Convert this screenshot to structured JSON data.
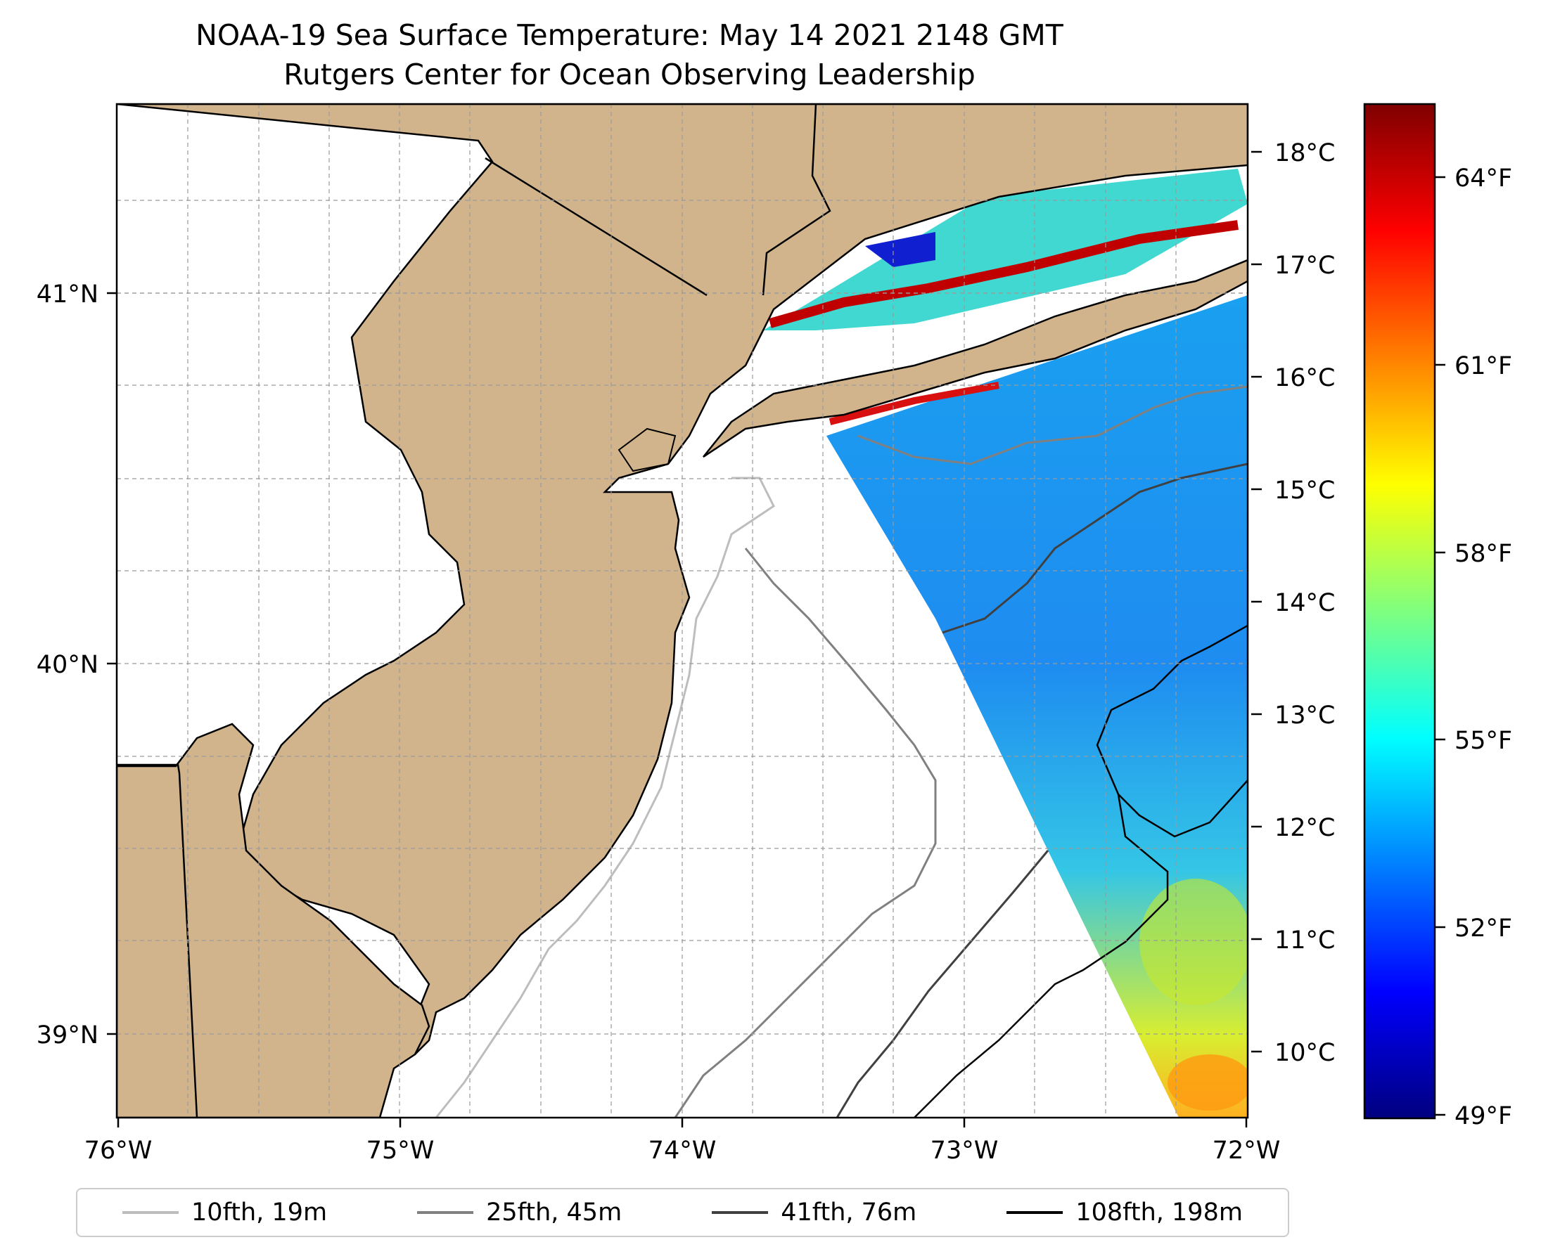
{
  "title": {
    "line1": "NOAA-19 Sea Surface Temperature: May 14 2021 2148 GMT",
    "line2": "Rutgers Center for Ocean Observing Leadership"
  },
  "map": {
    "lon_range": [
      -76,
      -72
    ],
    "lat_range": [
      38.75,
      41.5
    ],
    "x_ticks": [
      "76°W",
      "75°W",
      "74°W",
      "73°W",
      "72°W"
    ],
    "y_ticks": [
      "41°N",
      "40°N",
      "39°N"
    ],
    "grid": true,
    "colors": {
      "land": "#d2b48c",
      "ocean": "#ffffff",
      "coast": "#000000"
    }
  },
  "colorbar": {
    "colormap": "jet",
    "celsius_ticks": [
      "18°C",
      "17°C",
      "16°C",
      "15°C",
      "14°C",
      "13°C",
      "12°C",
      "11°C",
      "10°C"
    ],
    "fahrenheit_ticks": [
      "64°F",
      "61°F",
      "58°F",
      "55°F",
      "52°F",
      "49°F"
    ],
    "range_c": [
      9.5,
      18.5
    ]
  },
  "legend": {
    "items": [
      {
        "label": "10fth, 19m",
        "color": "#bdbdbd"
      },
      {
        "label": "25fth, 45m",
        "color": "#808080"
      },
      {
        "label": "41fth, 76m",
        "color": "#404040"
      },
      {
        "label": "108fth, 198m",
        "color": "#000000"
      }
    ]
  }
}
